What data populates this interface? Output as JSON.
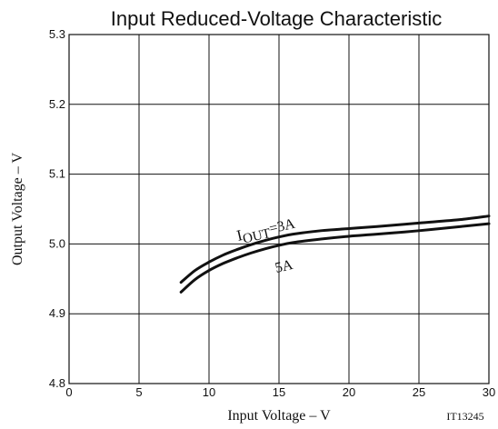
{
  "chart_data": {
    "type": "line",
    "title": "Input Reduced-Voltage Characteristic",
    "xlabel": "Input Voltage  –  V",
    "ylabel": "Output Voltage  –  V",
    "xlim": [
      0,
      30
    ],
    "ylim": [
      4.8,
      5.3
    ],
    "xticks": [
      0,
      5,
      10,
      15,
      20,
      25,
      30
    ],
    "yticks": [
      4.8,
      4.9,
      5.0,
      5.1,
      5.2,
      5.3
    ],
    "grid": true,
    "figure_code": "IT13245",
    "series": [
      {
        "name": "IOUT=3A",
        "x": [
          8,
          9,
          10,
          11,
          12,
          13,
          14,
          15,
          16,
          18,
          20,
          22,
          25,
          28,
          30
        ],
        "y": [
          4.945,
          4.962,
          4.974,
          4.984,
          4.992,
          4.999,
          5.005,
          5.01,
          5.014,
          5.019,
          5.022,
          5.025,
          5.03,
          5.035,
          5.04
        ]
      },
      {
        "name": "5A",
        "x": [
          8,
          9,
          10,
          11,
          12,
          13,
          14,
          15,
          16,
          18,
          20,
          22,
          25,
          28,
          30
        ],
        "y": [
          4.931,
          4.949,
          4.962,
          4.972,
          4.98,
          4.987,
          4.993,
          4.998,
          5.002,
          5.007,
          5.011,
          5.014,
          5.019,
          5.025,
          5.029
        ]
      }
    ],
    "annotations": {
      "label_3a_main": "I",
      "label_3a_sub": "OUT",
      "label_3a_rest": "=3A",
      "label_5a": "5A"
    }
  }
}
